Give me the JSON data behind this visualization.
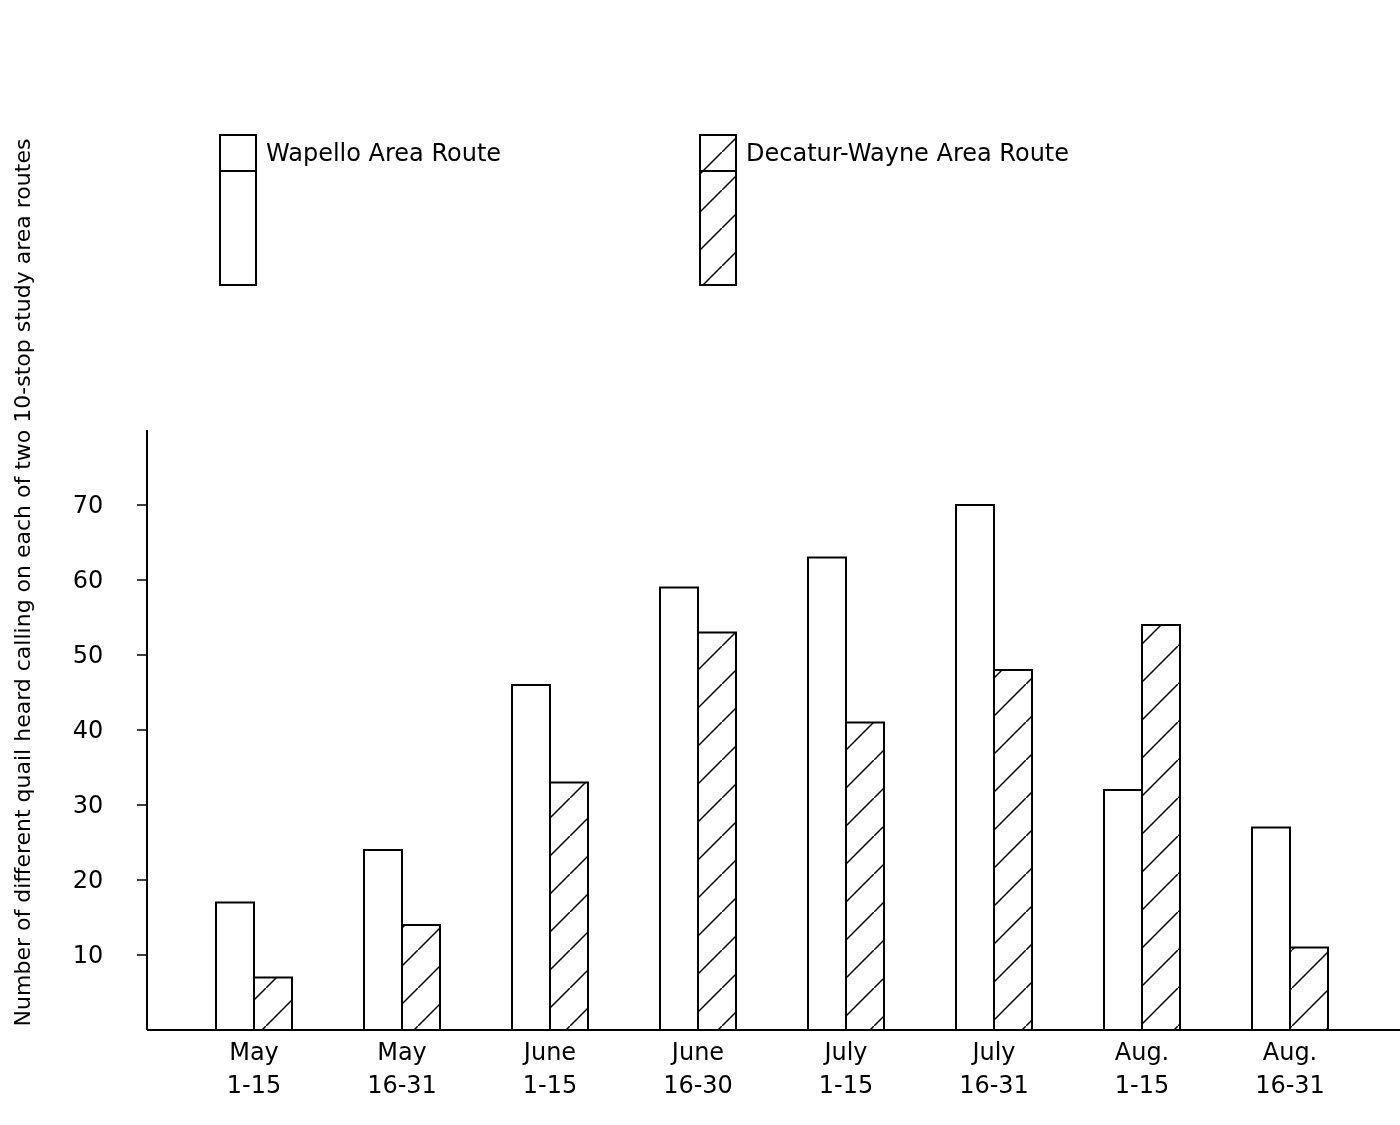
{
  "chart_data": {
    "type": "bar",
    "ylabel": "Number of different quail heard calling on each of two 10-stop study area routes",
    "categories": [
      "May\n1-15",
      "May\n16-31",
      "June\n1-15",
      "June\n16-30",
      "July\n1-15",
      "July\n16-31",
      "Aug.\n1-15",
      "Aug.\n16-31"
    ],
    "series": [
      {
        "name": "Wapello Area Route",
        "color": "#000000",
        "values": [
          17,
          24,
          46,
          59,
          63,
          70,
          32,
          27
        ]
      },
      {
        "name": "Decatur-Wayne Area Route",
        "color": "#000000",
        "values": [
          7,
          14,
          33,
          53,
          41,
          48,
          54,
          11
        ]
      }
    ],
    "ylim": [
      0,
      80
    ],
    "yticks": [
      10,
      20,
      30,
      40,
      50,
      60,
      70
    ],
    "grid": false,
    "legend": "top"
  }
}
